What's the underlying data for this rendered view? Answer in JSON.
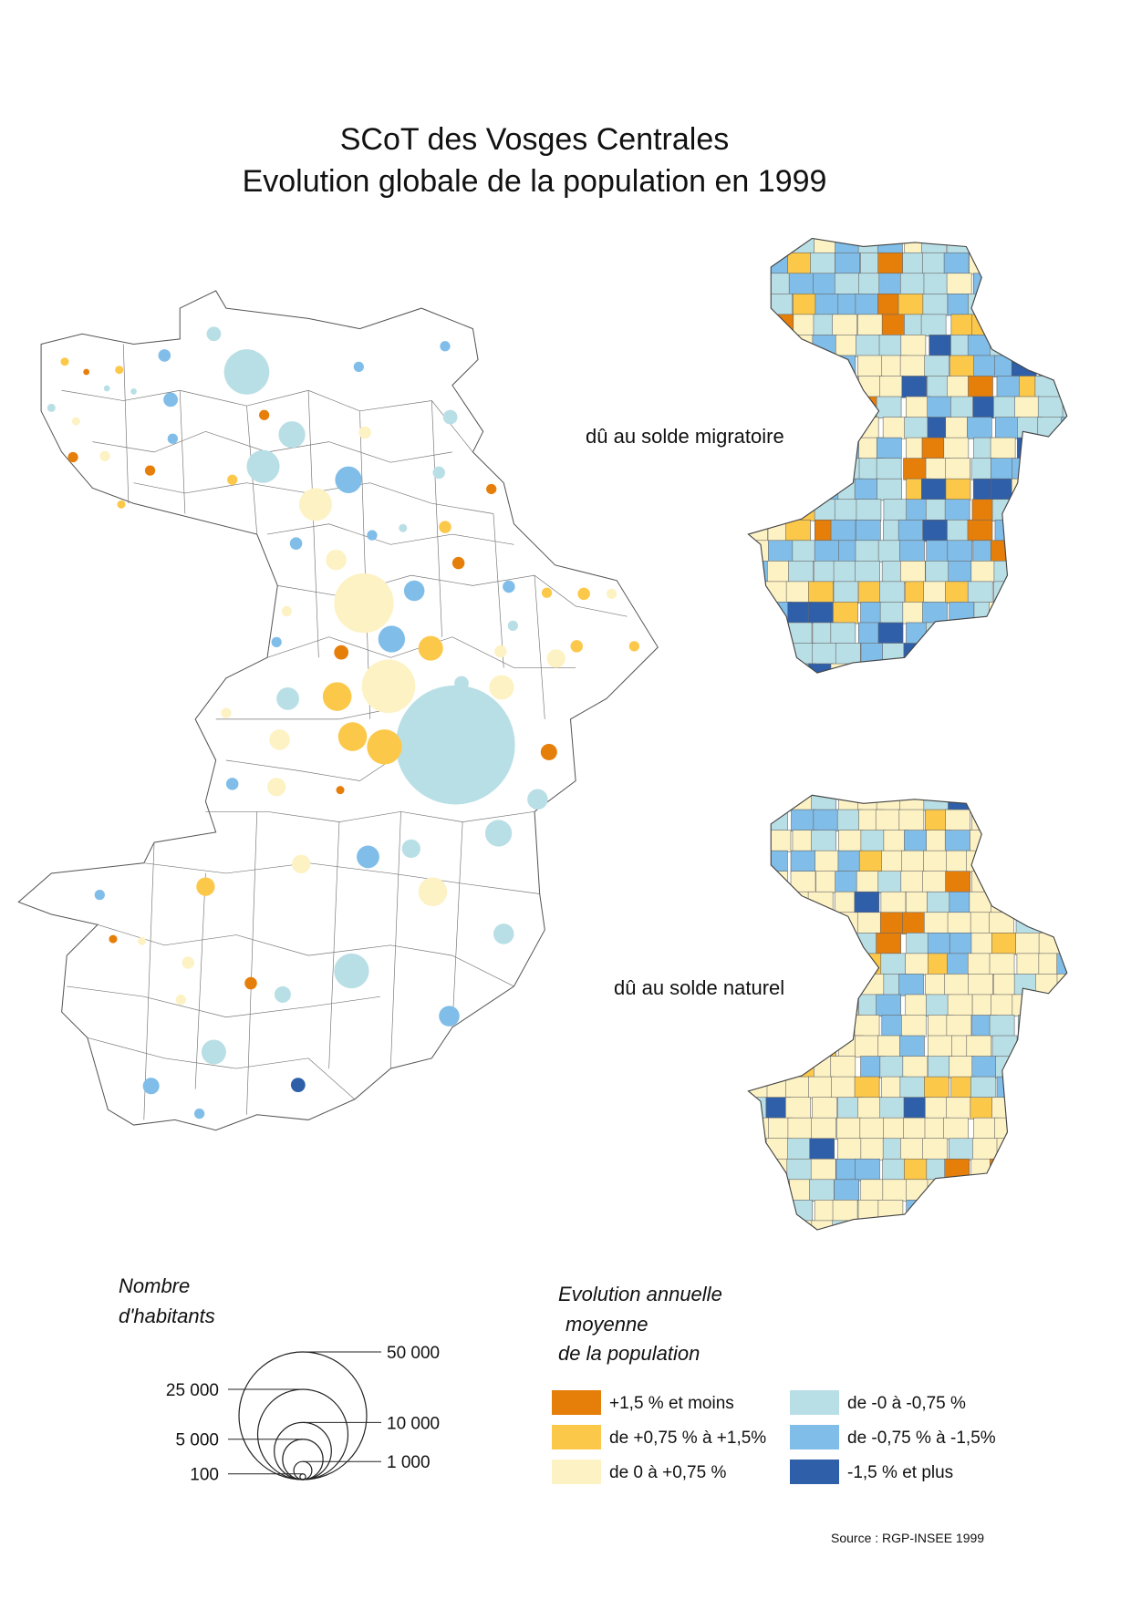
{
  "header": {
    "title": [
      "SCoT des Vosges Centrales",
      "Evolution globale de la population en 1999"
    ]
  },
  "maps": [
    {
      "label": "dû au solde migratoire"
    },
    {
      "label": "dû au solde naturel"
    }
  ],
  "circle_legend": {
    "title": [
      "Nombre",
      "d'habitants"
    ],
    "sizes": [
      {
        "value": 50000,
        "label": "50 000"
      },
      {
        "value": 25000,
        "label": "25 000"
      },
      {
        "value": 10000,
        "label": "10 000"
      },
      {
        "value": 5000,
        "label": "5 000"
      },
      {
        "value": 1000,
        "label": "1 000"
      },
      {
        "value": 100,
        "label": "100"
      }
    ]
  },
  "color_legend": {
    "title": [
      "Evolution annuelle",
      "moyenne",
      "de la population"
    ],
    "classes": [
      {
        "label": "+1,5 % et moins",
        "color": "#e67e0a"
      },
      {
        "label": "de +0,75 % à +1,5%",
        "color": "#fcc84a"
      },
      {
        "label": "de 0 à +0,75 %",
        "color": "#fdf2c4"
      },
      {
        "label": "de -0 à -0,75 %",
        "color": "#b9dfe6"
      },
      {
        "label": "de -0,75 % à -1,5%",
        "color": "#80bde8"
      },
      {
        "label": "-1,5 % et plus",
        "color": "#2f5fa8"
      }
    ]
  },
  "source": "Source : RGP-INSEE 1999"
}
